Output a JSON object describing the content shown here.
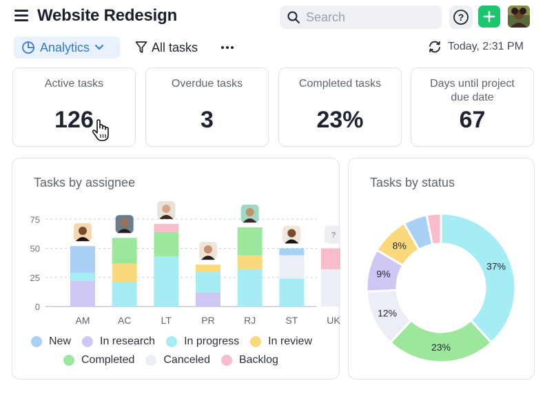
{
  "header": {
    "title": "Website Redesign",
    "search_placeholder": "Search",
    "menu_icon": "hamburger-icon",
    "help_icon": "question-circle-icon",
    "add_icon": "plus-icon",
    "avatar_icon": "user-avatar"
  },
  "toolbar": {
    "view_label": "Analytics",
    "filter_label": "All tasks",
    "more_icon": "ellipsis-icon",
    "refresh_text": "Today, 2:31 PM"
  },
  "stats": [
    {
      "label": "Active tasks",
      "value": "126"
    },
    {
      "label": "Overdue tasks",
      "value": "3"
    },
    {
      "label": "Completed tasks",
      "value": "23%"
    },
    {
      "label": "Days until project due date",
      "value": "67"
    }
  ],
  "colors": {
    "accent": "#2f78d3",
    "add_button": "#1fc46e"
  },
  "legend": [
    {
      "label": "New",
      "color": "#a8d1f5"
    },
    {
      "label": "In research",
      "color": "#cfc6f3"
    },
    {
      "label": "In progress",
      "color": "#a5ecf4"
    },
    {
      "label": "In review",
      "color": "#f9d97c"
    },
    {
      "label": "Completed",
      "color": "#9de79d"
    },
    {
      "label": "Canceled",
      "color": "#eceef5"
    },
    {
      "label": "Backlog",
      "color": "#f9bccb"
    }
  ],
  "chart_data": [
    {
      "type": "bar",
      "title": "Tasks by assignee",
      "stacked": true,
      "categories": [
        "AM",
        "AC",
        "LT",
        "PR",
        "RJ",
        "ST",
        "UK"
      ],
      "ylim": [
        0,
        87
      ],
      "yticks": [
        0,
        25,
        50,
        75
      ],
      "grid": "dashed horizontal",
      "legend_position": "bottom",
      "series": [
        {
          "name": "In research",
          "color": "#cfc6f3",
          "values": [
            22,
            0,
            0,
            12,
            0,
            0,
            0
          ]
        },
        {
          "name": "In progress",
          "color": "#a5ecf4",
          "values": [
            7,
            21,
            43,
            18,
            32,
            24,
            0
          ]
        },
        {
          "name": "New",
          "color": "#a8d1f5",
          "values": [
            23,
            0,
            0,
            0,
            0,
            0,
            0
          ]
        },
        {
          "name": "In review",
          "color": "#f9d97c",
          "values": [
            0,
            16,
            0,
            6,
            12,
            0,
            0
          ]
        },
        {
          "name": "Completed",
          "color": "#9de79d",
          "values": [
            0,
            22,
            21,
            0,
            24,
            0,
            0
          ]
        },
        {
          "name": "Canceled",
          "color": "#eceef5",
          "values": [
            0,
            0,
            0,
            0,
            0,
            20,
            32
          ]
        },
        {
          "name": "Backlog",
          "color": "#f9bccb",
          "values": [
            0,
            0,
            7,
            0,
            0,
            0,
            18
          ]
        },
        {
          "name": "New",
          "color": "#a8d1f5",
          "values": [
            0,
            0,
            0,
            0,
            0,
            6,
            0
          ]
        }
      ],
      "avatar_labels": [
        "",
        "",
        "",
        "",
        "",
        "",
        "?"
      ]
    },
    {
      "type": "pie",
      "title": "Tasks by status",
      "donut": true,
      "slices": [
        {
          "name": "In progress",
          "value": 37,
          "label": "37%",
          "color": "#a5ecf4"
        },
        {
          "name": "Completed",
          "value": 23,
          "label": "23%",
          "color": "#9de79d"
        },
        {
          "name": "Canceled",
          "value": 12,
          "label": "12%",
          "color": "#eceef5"
        },
        {
          "name": "In research",
          "value": 9,
          "label": "9%",
          "color": "#cfc6f3"
        },
        {
          "name": "In review",
          "value": 8,
          "label": "8%",
          "color": "#f9d97c"
        },
        {
          "name": "New",
          "value": 5,
          "label": "",
          "color": "#a8d1f5"
        },
        {
          "name": "Backlog",
          "value": 3,
          "label": "",
          "color": "#f9bccb"
        }
      ]
    }
  ]
}
